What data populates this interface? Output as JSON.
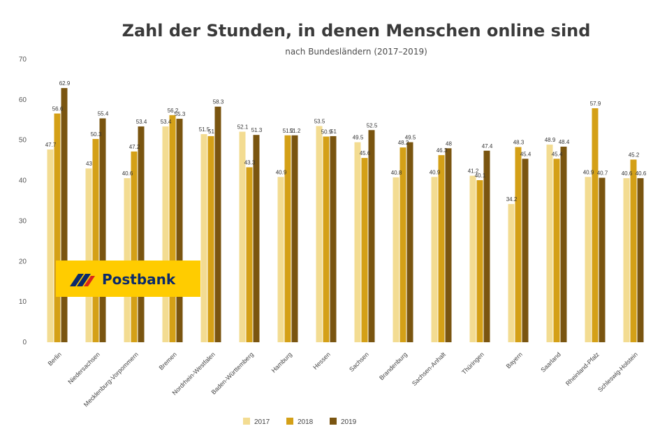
{
  "chart_data": {
    "type": "bar",
    "title": "Zahl der Stunden, in denen Menschen online sind",
    "subtitle": "nach Bundesländern (2017–2019)",
    "categories": [
      "Berlin",
      "Niedersachsen",
      "Mecklenburg-Vorpommern",
      "Bremen",
      "Nordrhein-Westfalen",
      "Baden-Württemberg",
      "Hamburg",
      "Hessen",
      "Sachsen",
      "Brandenburg",
      "Sachsen-Anhalt",
      "Thüringen",
      "Bayern",
      "Saarland",
      "Rheinland-Pfalz",
      "Schleswig-Holstein"
    ],
    "series": [
      {
        "name": "2017",
        "color": "#f3dc92",
        "values": [
          47.7,
          43.0,
          40.6,
          53.4,
          51.5,
          52.1,
          40.9,
          53.5,
          49.5,
          40.8,
          40.9,
          41.2,
          34.2,
          48.9,
          40.9,
          40.6
        ]
      },
      {
        "name": "2018",
        "color": "#d4a017",
        "values": [
          56.6,
          50.3,
          47.2,
          56.2,
          51.0,
          43.3,
          51.2,
          50.9,
          45.6,
          48.2,
          46.3,
          40.1,
          48.3,
          45.4,
          57.9,
          45.2
        ]
      },
      {
        "name": "2019",
        "color": "#7a5510",
        "values": [
          62.9,
          55.4,
          53.4,
          55.3,
          58.3,
          51.3,
          51.2,
          51.0,
          52.5,
          49.5,
          48.0,
          47.4,
          45.4,
          48.4,
          40.7,
          40.6
        ]
      }
    ],
    "labels": [
      [
        "47.7",
        "56.6",
        "62.9"
      ],
      [
        "43",
        "50.3",
        "55.4"
      ],
      [
        "40.6",
        "47.2",
        "53.4"
      ],
      [
        "53.4",
        "56.2",
        "55.3"
      ],
      [
        "51.5",
        "51",
        "58.3"
      ],
      [
        "52.1",
        "43.3",
        "51.3"
      ],
      [
        "40.9",
        "51.2",
        "51.2"
      ],
      [
        "53.5",
        "50.9",
        "51"
      ],
      [
        "49.5",
        "45.6",
        "52.5"
      ],
      [
        "40.8",
        "48.2",
        "49.5"
      ],
      [
        "40.9",
        "46.3",
        "48"
      ],
      [
        "41.2",
        "40.1",
        "47.4"
      ],
      [
        "34.2",
        "48.3",
        "45.4"
      ],
      [
        "48.9",
        "45.4",
        "48.4"
      ],
      [
        "40.9",
        "57.9",
        "40.7"
      ],
      [
        "40.6",
        "45.2",
        "40.6"
      ]
    ],
    "ylim": [
      0,
      70
    ],
    "yticks": [
      0,
      10,
      20,
      30,
      40,
      50,
      60,
      70
    ],
    "grid": false,
    "legend": "bottom-center"
  },
  "logo": {
    "text": "Postbank"
  }
}
